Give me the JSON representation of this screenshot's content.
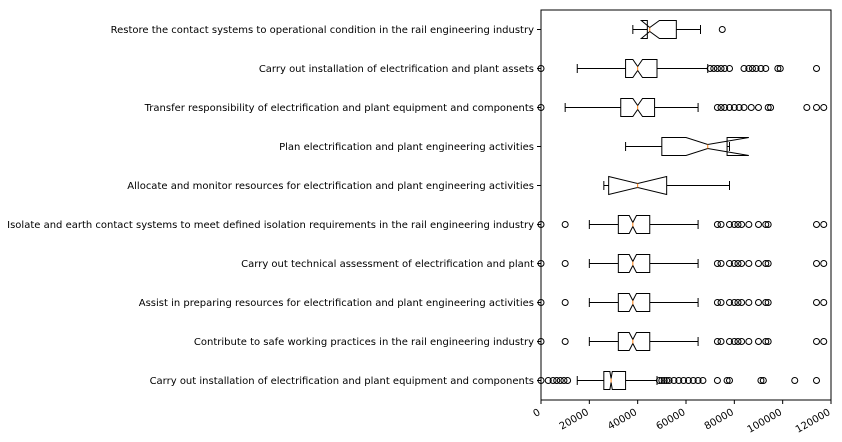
{
  "chart_data": {
    "type": "boxplot",
    "orientation": "horizontal",
    "notched": true,
    "xlim": [
      0,
      120000
    ],
    "x_ticks": [
      0,
      20000,
      40000,
      60000,
      80000,
      100000,
      120000
    ],
    "x_tick_labels": [
      "0",
      "20000",
      "40000",
      "60000",
      "80000",
      "100000",
      "120000"
    ],
    "colors": {
      "box": "#000000",
      "median": "#ff7f0e",
      "outlier": "#000000",
      "background": "#ffffff"
    },
    "categories": [
      {
        "label": "Restore the contact systems to operational condition in the rail engineering industry",
        "whislo": 38000,
        "q1": 44000,
        "med": 45000,
        "q3": 56000,
        "whishi": 66000,
        "notch_lo": 41500,
        "notch_hi": 49000,
        "fliers": [
          75000
        ]
      },
      {
        "label": "Carry out installation of electrification and plant assets",
        "whislo": 15000,
        "q1": 35000,
        "med": 40000,
        "q3": 48000,
        "whishi": 69000,
        "notch_lo": 38000,
        "notch_hi": 42000,
        "fliers": [
          0,
          70000,
          71500,
          73000,
          74500,
          76000,
          78000,
          84000,
          86000,
          87500,
          89000,
          91000,
          93000,
          98000,
          99000,
          114000
        ]
      },
      {
        "label": "Transfer responsibility of electrification and plant equipment and components",
        "whislo": 10000,
        "q1": 33000,
        "med": 40000,
        "q3": 47000,
        "whishi": 65000,
        "notch_lo": 38000,
        "notch_hi": 42000,
        "fliers": [
          0,
          73000,
          74500,
          76000,
          78000,
          80000,
          82000,
          84000,
          87000,
          90000,
          94000,
          95000,
          110000,
          114000,
          117000
        ]
      },
      {
        "label": "Plan electrification and plant engineering activities",
        "whislo": 35000,
        "q1": 50000,
        "med": 69000,
        "q3": 77000,
        "whishi": 78000,
        "notch_lo": 60000,
        "notch_hi": 86000,
        "fliers": []
      },
      {
        "label": "Allocate and monitor resources for electrification and plant engineering activities",
        "whislo": 26000,
        "q1": 28000,
        "med": 40000,
        "q3": 52000,
        "whishi": 78000,
        "notch_lo": 28000,
        "notch_hi": 52000,
        "fliers": []
      },
      {
        "label": "Isolate and earth contact systems to meet defined isolation requirements in the rail engineering industry",
        "whislo": 20000,
        "q1": 32000,
        "med": 38000,
        "q3": 45000,
        "whishi": 65000,
        "notch_lo": 36500,
        "notch_hi": 39500,
        "fliers": [
          0,
          10000,
          73000,
          74500,
          78000,
          80000,
          81500,
          83000,
          86000,
          90000,
          93000,
          94000,
          114000,
          117000
        ]
      },
      {
        "label": "Carry out technical assessment of electrification and plant",
        "whislo": 20000,
        "q1": 32000,
        "med": 38000,
        "q3": 45000,
        "whishi": 65000,
        "notch_lo": 36500,
        "notch_hi": 39500,
        "fliers": [
          0,
          10000,
          73000,
          74500,
          78000,
          80000,
          81500,
          83000,
          86000,
          90000,
          93000,
          94000,
          114000,
          117000
        ]
      },
      {
        "label": "Assist in preparing resources for electrification and plant engineering activities",
        "whislo": 20000,
        "q1": 32000,
        "med": 38000,
        "q3": 45000,
        "whishi": 65000,
        "notch_lo": 36500,
        "notch_hi": 39500,
        "fliers": [
          0,
          10000,
          73000,
          74500,
          78000,
          80000,
          81500,
          83000,
          86000,
          90000,
          93000,
          94000,
          114000,
          117000
        ]
      },
      {
        "label": "Contribute to safe working practices in the rail engineering industry",
        "whislo": 20000,
        "q1": 32000,
        "med": 38000,
        "q3": 45000,
        "whishi": 65000,
        "notch_lo": 36500,
        "notch_hi": 39500,
        "fliers": [
          0,
          10000,
          73000,
          74500,
          78000,
          80000,
          81500,
          83000,
          86000,
          90000,
          93000,
          94000,
          114000,
          117000
        ]
      },
      {
        "label": "Carry out installation of electrification and plant equipment and components",
        "whislo": 15000,
        "q1": 26000,
        "med": 29000,
        "q3": 35000,
        "whishi": 48000,
        "notch_lo": 28500,
        "notch_hi": 29500,
        "fliers": [
          0,
          3000,
          5000,
          6500,
          8000,
          9500,
          11000,
          49000,
          50000,
          51000,
          52000,
          53000,
          55000,
          57000,
          59000,
          61000,
          63000,
          65000,
          67000,
          73000,
          77000,
          78000,
          91000,
          92000,
          105000,
          114000
        ]
      }
    ]
  }
}
